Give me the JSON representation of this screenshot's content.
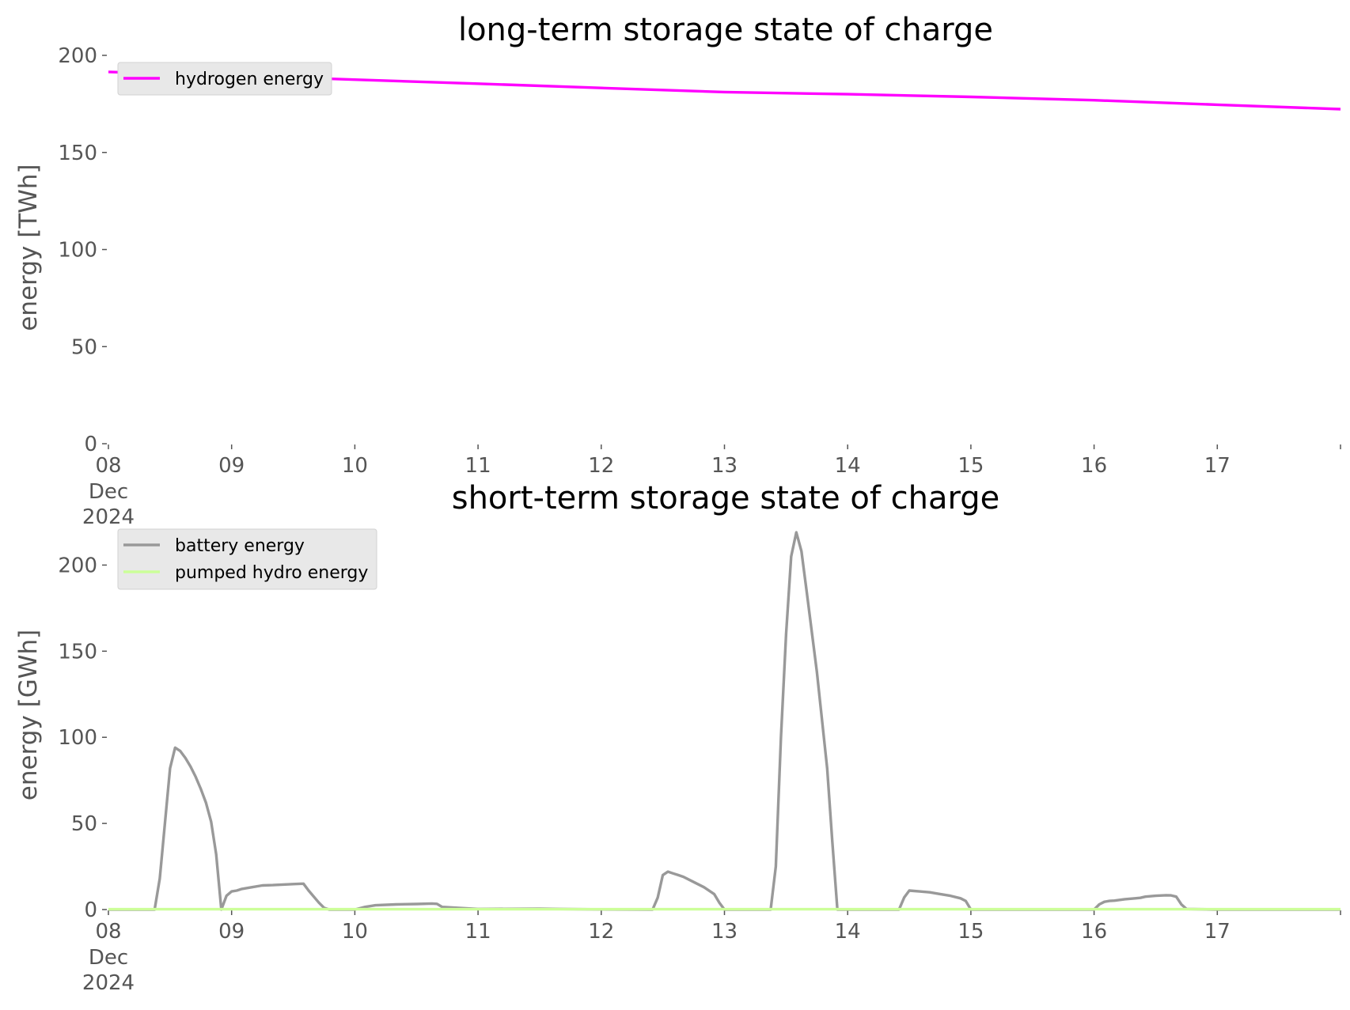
{
  "chart_data": [
    {
      "type": "line",
      "title": "long-term storage state of charge",
      "xlabel": "",
      "ylabel": "energy [TWh]",
      "ylim": [
        0,
        200
      ],
      "yticks": [
        "0",
        "50",
        "100",
        "150",
        "200"
      ],
      "xlim": [
        "2024-12-08T00:00",
        "2024-12-18T00:00"
      ],
      "xticks": [
        {
          "label": "08",
          "sub": [
            "Dec",
            "2024"
          ],
          "date": "2024-12-08"
        },
        {
          "label": "09",
          "date": "2024-12-09"
        },
        {
          "label": "10",
          "date": "2024-12-10"
        },
        {
          "label": "11",
          "date": "2024-12-11"
        },
        {
          "label": "12",
          "date": "2024-12-12"
        },
        {
          "label": "13",
          "date": "2024-12-13"
        },
        {
          "label": "14",
          "date": "2024-12-14"
        },
        {
          "label": "15",
          "date": "2024-12-15"
        },
        {
          "label": "16",
          "date": "2024-12-16"
        },
        {
          "label": "17",
          "date": "2024-12-17"
        }
      ],
      "grid": false,
      "legend": "upper-left",
      "series": [
        {
          "name": "hydrogen energy",
          "color": "#ff00ff",
          "x": [
            "2024-12-08T00:00",
            "2024-12-09T00:00",
            "2024-12-10T00:00",
            "2024-12-11T00:00",
            "2024-12-12T00:00",
            "2024-12-13T00:00",
            "2024-12-14T00:00",
            "2024-12-15T00:00",
            "2024-12-16T00:00",
            "2024-12-17T00:00",
            "2024-12-18T00:00"
          ],
          "values": [
            191.5,
            189.6,
            187.5,
            185.4,
            183.2,
            181.1,
            180.0,
            178.6,
            176.9,
            174.6,
            172.3
          ]
        }
      ]
    },
    {
      "type": "line",
      "title": "short-term storage state of charge",
      "xlabel": "",
      "ylabel": "energy [GWh]",
      "ylim": [
        0,
        225
      ],
      "yticks": [
        "0",
        "50",
        "100",
        "150",
        "200"
      ],
      "xlim": [
        "2024-12-08T00:00",
        "2024-12-18T00:00"
      ],
      "xticks": [
        {
          "label": "08",
          "sub": [
            "Dec",
            "2024"
          ],
          "date": "2024-12-08"
        },
        {
          "label": "09",
          "date": "2024-12-09"
        },
        {
          "label": "10",
          "date": "2024-12-10"
        },
        {
          "label": "11",
          "date": "2024-12-11"
        },
        {
          "label": "12",
          "date": "2024-12-12"
        },
        {
          "label": "13",
          "date": "2024-12-13"
        },
        {
          "label": "14",
          "date": "2024-12-14"
        },
        {
          "label": "15",
          "date": "2024-12-15"
        },
        {
          "label": "16",
          "date": "2024-12-16"
        },
        {
          "label": "17",
          "date": "2024-12-17"
        }
      ],
      "grid": false,
      "legend": "upper-left",
      "series": [
        {
          "name": "battery energy",
          "color": "#999999",
          "x": [
            "2024-12-08T00:00",
            "2024-12-08T09:00",
            "2024-12-08T10:00",
            "2024-12-08T11:00",
            "2024-12-08T12:00",
            "2024-12-08T13:00",
            "2024-12-08T14:00",
            "2024-12-08T15:00",
            "2024-12-08T16:00",
            "2024-12-08T17:00",
            "2024-12-08T18:00",
            "2024-12-08T19:00",
            "2024-12-08T20:00",
            "2024-12-08T21:00",
            "2024-12-08T22:00",
            "2024-12-08T23:00",
            "2024-12-09T00:00",
            "2024-12-09T01:00",
            "2024-12-09T02:00",
            "2024-12-09T04:00",
            "2024-12-09T06:00",
            "2024-12-09T08:00",
            "2024-12-09T10:00",
            "2024-12-09T12:00",
            "2024-12-09T14:00",
            "2024-12-09T15:00",
            "2024-12-09T17:00",
            "2024-12-09T18:00",
            "2024-12-09T19:00",
            "2024-12-10T00:00",
            "2024-12-10T02:00",
            "2024-12-10T04:00",
            "2024-12-10T08:00",
            "2024-12-10T12:00",
            "2024-12-10T15:00",
            "2024-12-10T16:00",
            "2024-12-10T17:00",
            "2024-12-11T00:00",
            "2024-12-11T12:00",
            "2024-12-11T16:00",
            "2024-12-12T00:00",
            "2024-12-12T10:00",
            "2024-12-12T11:00",
            "2024-12-12T12:00",
            "2024-12-12T13:00",
            "2024-12-12T14:00",
            "2024-12-12T15:00",
            "2024-12-12T16:00",
            "2024-12-12T18:00",
            "2024-12-12T20:00",
            "2024-12-12T22:00",
            "2024-12-12T23:00",
            "2024-12-13T00:00",
            "2024-12-13T09:00",
            "2024-12-13T10:00",
            "2024-12-13T11:00",
            "2024-12-13T12:00",
            "2024-12-13T13:00",
            "2024-12-13T14:00",
            "2024-12-13T15:00",
            "2024-12-13T16:00",
            "2024-12-13T18:00",
            "2024-12-13T20:00",
            "2024-12-13T21:00",
            "2024-12-13T22:00",
            "2024-12-13T23:00",
            "2024-12-14T00:00",
            "2024-12-14T10:00",
            "2024-12-14T11:00",
            "2024-12-14T12:00",
            "2024-12-14T14:00",
            "2024-12-14T16:00",
            "2024-12-14T18:00",
            "2024-12-14T20:00",
            "2024-12-14T22:00",
            "2024-12-14T23:00",
            "2024-12-15T00:00",
            "2024-12-16T00:00",
            "2024-12-16T01:00",
            "2024-12-16T02:00",
            "2024-12-16T03:00",
            "2024-12-16T04:00",
            "2024-12-16T06:00",
            "2024-12-16T08:00",
            "2024-12-16T09:00",
            "2024-12-16T10:00",
            "2024-12-16T12:00",
            "2024-12-16T14:00",
            "2024-12-16T15:00",
            "2024-12-16T16:00",
            "2024-12-16T17:00",
            "2024-12-16T18:00",
            "2024-12-17T00:00",
            "2024-12-18T00:00"
          ],
          "values": [
            0,
            0,
            18,
            50,
            82,
            94,
            92,
            88,
            83,
            77,
            70,
            62,
            51,
            32,
            0,
            8,
            10.5,
            11,
            12,
            13,
            14,
            14.2,
            14.5,
            14.8,
            15,
            11,
            4,
            1,
            0,
            0,
            1.5,
            2.5,
            3,
            3.2,
            3.5,
            3.3,
            1.5,
            0.3,
            0.5,
            0.3,
            0.1,
            0,
            7,
            20,
            22,
            21,
            20,
            19,
            16,
            13,
            9,
            4,
            0,
            0,
            25,
            100,
            160,
            205,
            219,
            208,
            185,
            138,
            82,
            40,
            0,
            0,
            0,
            0,
            7,
            11,
            10.5,
            10,
            9,
            8,
            6.5,
            5,
            0,
            0,
            3,
            4.5,
            5,
            5.2,
            6,
            6.5,
            6.8,
            7.5,
            8,
            8.3,
            8.2,
            7.5,
            3,
            0.3,
            0,
            0
          ]
        },
        {
          "name": "pumped hydro energy",
          "color": "#ccff99",
          "x": [
            "2024-12-08T00:00",
            "2024-12-18T00:00"
          ],
          "values": [
            0.2,
            0.2
          ]
        }
      ]
    }
  ]
}
